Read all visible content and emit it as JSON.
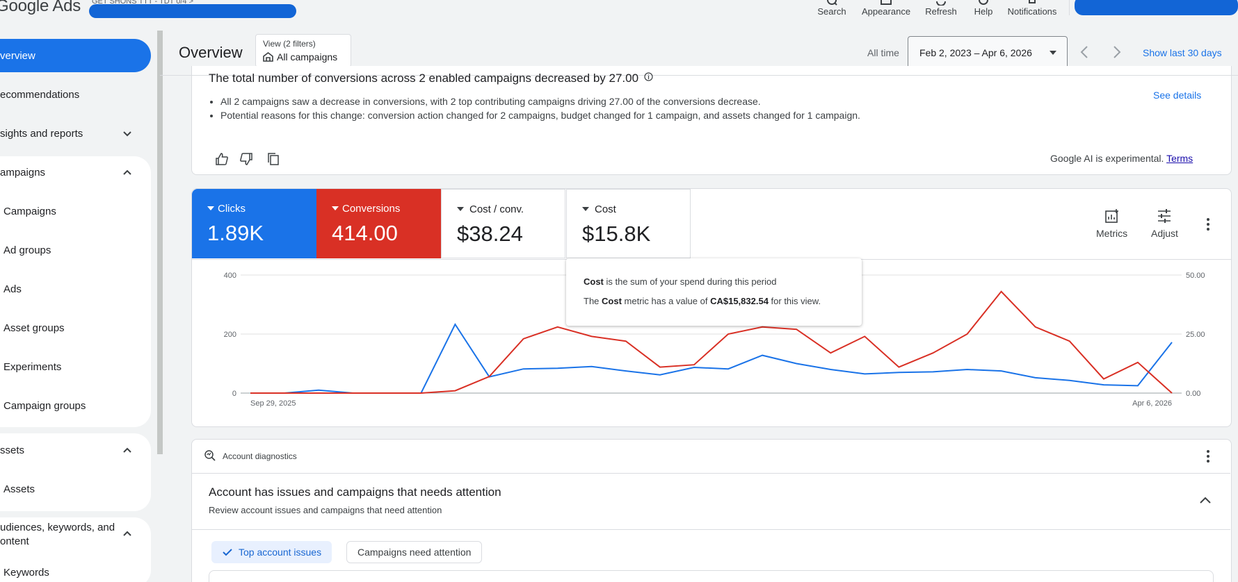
{
  "app": {
    "logo": "Google Ads",
    "account_line": "GET SHONS TTT - TDT 0/4 >"
  },
  "top_actions": [
    {
      "label": "Search",
      "icon": "search-icon"
    },
    {
      "label": "Appearance",
      "icon": "appearance-icon"
    },
    {
      "label": "Refresh",
      "icon": "refresh-icon"
    },
    {
      "label": "Help",
      "icon": "help-icon"
    },
    {
      "label": "Notifications",
      "icon": "bell-icon"
    }
  ],
  "sidebar": {
    "items": [
      {
        "label": "verview",
        "active": true
      },
      {
        "label": "ecommendations"
      },
      {
        "label": "sights and reports",
        "chevron": "down"
      },
      {
        "label": "ampaigns",
        "chevron": "up"
      },
      {
        "label": "Campaigns"
      },
      {
        "label": "Ad groups"
      },
      {
        "label": "Ads"
      },
      {
        "label": "Asset groups"
      },
      {
        "label": "Experiments"
      },
      {
        "label": "Campaign groups"
      },
      {
        "label": "ssets",
        "chevron": "up"
      },
      {
        "label": "Assets"
      },
      {
        "label": "udiences, keywords, and",
        "label2": "ontent",
        "chevron": "up"
      },
      {
        "label": "Keywords"
      }
    ]
  },
  "header": {
    "title": "Overview",
    "view_label": "View (2 filters)",
    "view_value": "All campaigns",
    "date_prefix": "All time",
    "date_range": "Feb 2, 2023 – Apr 6, 2026",
    "show_last": "Show last 30 days"
  },
  "insight": {
    "title": "The total number of conversions across 2 enabled campaigns decreased by 27.00",
    "bullets": [
      "All 2 campaigns saw a decrease in conversions, with 2 top contributing campaigns driving 27.00 of the conversions decrease.",
      "Potential reasons for this change: conversion action changed for 2 campaigns, budget changed for 1 campaign, and assets changed for 1 campaign."
    ],
    "see_details": "See details",
    "ai_note": "Google AI is experimental.",
    "terms": "Terms"
  },
  "metrics": [
    {
      "name": "Clicks",
      "value": "1.89K",
      "color": "#1a73e8"
    },
    {
      "name": "Conversions",
      "value": "414.00",
      "color": "#d93025"
    },
    {
      "name": "Cost / conv.",
      "value": "$38.24"
    },
    {
      "name": "Cost",
      "value": "$15.8K"
    }
  ],
  "tools": {
    "metrics": "Metrics",
    "adjust": "Adjust"
  },
  "tooltip": {
    "b1": "Cost",
    "t1": " is the sum of your spend during this period",
    "t2a": "The ",
    "b2": "Cost",
    "t2b": " metric has a value of ",
    "b3": "CA$15,832.54",
    "t2c": " for this view."
  },
  "chart_data": {
    "type": "line",
    "x_start_label": "Sep 29, 2025",
    "x_end_label": "Apr 6, 2026",
    "y_left_ticks": [
      "400",
      "200",
      "0"
    ],
    "y_right_ticks": [
      "50.00",
      "25.00",
      "0.00"
    ],
    "y_left_range": [
      0,
      400
    ],
    "y_right_range": [
      0,
      50
    ],
    "series": [
      {
        "name": "Clicks",
        "axis": "left",
        "color": "#1a73e8",
        "values": [
          0,
          0,
          10,
          0,
          0,
          0,
          233,
          55,
          82,
          84,
          90,
          75,
          62,
          87,
          82,
          128,
          100,
          80,
          65,
          70,
          72,
          80,
          75,
          52,
          43,
          28,
          25,
          172
        ]
      },
      {
        "name": "Conversions",
        "axis": "right",
        "color": "#d93025",
        "values": [
          0,
          0,
          0,
          0,
          0,
          0,
          1,
          7,
          23,
          28,
          24,
          22,
          11,
          12,
          25,
          28,
          27,
          17,
          24,
          11,
          17,
          25,
          43,
          28,
          22,
          6,
          13,
          0
        ]
      }
    ]
  },
  "diagnostics": {
    "header": "Account diagnostics",
    "title": "Account has issues and campaigns that needs attention",
    "subtitle": "Review account issues and campaigns that need attention",
    "chip_selected": "Top account issues",
    "chip_other": "Campaigns need attention"
  }
}
